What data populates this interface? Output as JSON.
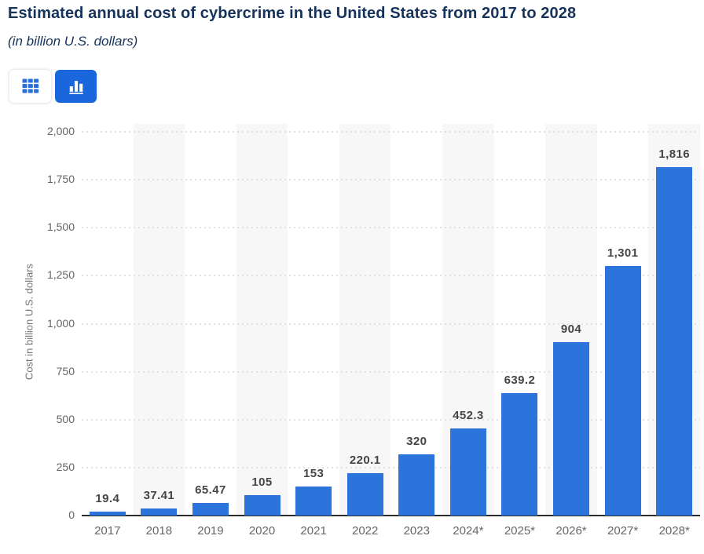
{
  "header": {
    "title": "Estimated annual cost of cybercrime in the United States from 2017 to 2028",
    "subtitle": "(in billion U.S. dollars)"
  },
  "toolbar": {
    "table_view_button": {
      "icon": "table-grid-icon",
      "active": false
    },
    "chart_view_button": {
      "icon": "bar-chart-icon",
      "active": true
    },
    "active_color": "#1a66dd",
    "icon_blue": "#2a70d8"
  },
  "chart_data": {
    "type": "bar",
    "title": "Estimated annual cost of cybercrime in the United States from 2017 to 2028",
    "subtitle": "(in billion U.S. dollars)",
    "categories": [
      "2017",
      "2018",
      "2019",
      "2020",
      "2021",
      "2022",
      "2023",
      "2024*",
      "2025*",
      "2026*",
      "2027*",
      "2028*"
    ],
    "values": [
      19.4,
      37.41,
      65.47,
      105,
      153,
      220.1,
      320,
      452.3,
      639.2,
      904,
      1301,
      1816
    ],
    "value_labels": [
      "19.4",
      "37.41",
      "65.47",
      "105",
      "153",
      "220.1",
      "320",
      "452.3",
      "639.2",
      "904",
      "1,301",
      "1,816"
    ],
    "xlabel": "",
    "ylabel": "Cost in billion U.S. dollars",
    "ylim": [
      0,
      2000
    ],
    "ytick_interval": 250,
    "yticks": [
      0,
      250,
      500,
      750,
      1000,
      1250,
      1500,
      1750,
      2000
    ],
    "ytick_labels": [
      "0",
      "250",
      "500",
      "750",
      "1,000",
      "1,250",
      "1,500",
      "1,750",
      "2,000"
    ],
    "grid": true,
    "legend": null,
    "bar_color": "#2d73dc",
    "stripe_color": "#f7f7f7"
  }
}
